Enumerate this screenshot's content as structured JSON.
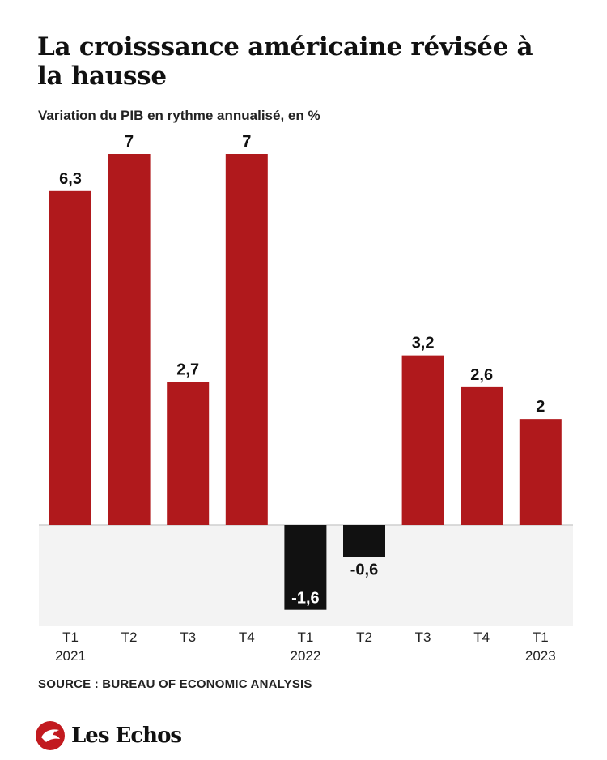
{
  "title": "La croisssance américaine révisée à la hausse",
  "subtitle": "Variation du PIB en rythme annualisé, en %",
  "source": "SOURCE : BUREAU OF ECONOMIC ANALYSIS",
  "brand": {
    "name": "Les Echos",
    "icon": "les-echos-logo-icon"
  },
  "colors": {
    "positive": "#b0191c",
    "negative": "#111111",
    "negative_band": "#f3f3f3"
  },
  "chart_data": {
    "type": "bar",
    "title": "La croisssance américaine révisée à la hausse",
    "subtitle": "Variation du PIB en rythme annualisé, en %",
    "categories": [
      "T1 2021",
      "T2 2021",
      "T3 2021",
      "T4 2021",
      "T1 2022",
      "T2 2022",
      "T3 2022",
      "T4 2022",
      "T1 2023"
    ],
    "tick_labels": [
      {
        "quarter": "T1",
        "year": "2021"
      },
      {
        "quarter": "T2",
        "year": ""
      },
      {
        "quarter": "T3",
        "year": ""
      },
      {
        "quarter": "T4",
        "year": ""
      },
      {
        "quarter": "T1",
        "year": "2022"
      },
      {
        "quarter": "T2",
        "year": ""
      },
      {
        "quarter": "T3",
        "year": ""
      },
      {
        "quarter": "T4",
        "year": ""
      },
      {
        "quarter": "T1",
        "year": "2023"
      }
    ],
    "values": [
      6.3,
      7,
      2.7,
      7,
      -1.6,
      -0.6,
      3.2,
      2.6,
      2
    ],
    "data_labels": [
      "6,3",
      "7",
      "2,7",
      "7",
      "-1,6",
      "-0,6",
      "3,2",
      "2,6",
      "2"
    ],
    "xlabel": "",
    "ylabel": "",
    "ylim": [
      -1.9,
      7
    ],
    "grid": false,
    "legend": "none"
  }
}
